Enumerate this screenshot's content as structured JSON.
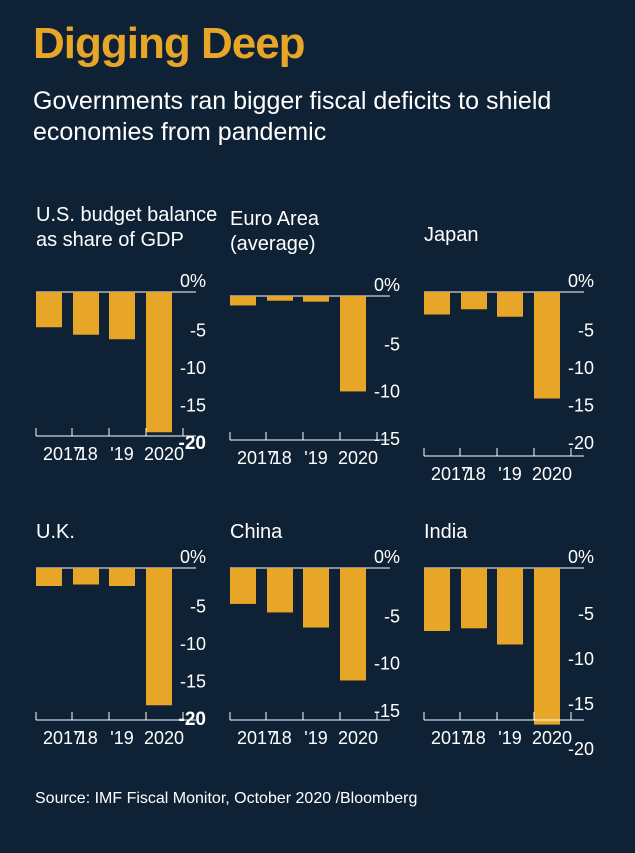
{
  "title": "Digging Deep",
  "subtitle": "Governments ran bigger fiscal deficits to shield economies from pandemic",
  "source": "Source: IMF Fiscal Monitor, October 2020 /Bloomberg",
  "colors": {
    "background": "#0f2235",
    "bar": "#e8a628",
    "text": "#ffffff",
    "title": "#e8a628"
  },
  "chart_data": [
    {
      "type": "bar",
      "title": "U.S. budget balance\nas share of GDP",
      "categories": [
        "2017",
        "'18",
        "'19",
        "2020"
      ],
      "values": [
        -4.7,
        -5.7,
        -6.3,
        -18.7
      ],
      "ylim": [
        -20,
        0
      ],
      "yticks": [
        0,
        -5,
        -10,
        -15,
        -20
      ],
      "ytick_labels": [
        "0%",
        "-5",
        "-10",
        "-15",
        "-20"
      ],
      "bold_tick": "-20"
    },
    {
      "type": "bar",
      "title": "Euro Area\n(average)",
      "categories": [
        "2017",
        "'18",
        "'19",
        "2020"
      ],
      "values": [
        -1.0,
        -0.5,
        -0.6,
        -10.1
      ],
      "ylim": [
        -15,
        0
      ],
      "yticks": [
        0,
        -5,
        -10,
        -15
      ],
      "ytick_labels": [
        "0%",
        "-5",
        "-10",
        "-15"
      ]
    },
    {
      "type": "bar",
      "title": "Japan",
      "categories": [
        "2017",
        "'18",
        "'19",
        "2020"
      ],
      "values": [
        -3.0,
        -2.3,
        -3.3,
        -14.2
      ],
      "ylim": [
        -20,
        0
      ],
      "yticks": [
        0,
        -5,
        -10,
        -15,
        -20
      ],
      "ytick_labels": [
        "0%",
        "-5",
        "-10",
        "-15",
        "-20"
      ]
    },
    {
      "type": "bar",
      "title": "U.K.",
      "categories": [
        "2017",
        "'18",
        "'19",
        "2020"
      ],
      "values": [
        -2.4,
        -2.2,
        -2.4,
        -18.3
      ],
      "ylim": [
        -20,
        0
      ],
      "yticks": [
        0,
        -5,
        -10,
        -15,
        -20
      ],
      "ytick_labels": [
        "0%",
        "-5",
        "-10",
        "-15",
        "-20"
      ],
      "bold_tick": "-20"
    },
    {
      "type": "bar",
      "title": "China",
      "categories": [
        "2017",
        "'18",
        "'19",
        "2020"
      ],
      "values": [
        -3.8,
        -4.7,
        -6.3,
        -11.9
      ],
      "ylim": [
        -15,
        0
      ],
      "yticks": [
        0,
        -5,
        -10,
        -15
      ],
      "ytick_labels": [
        "0%",
        "-5",
        "-10",
        "-15"
      ]
    },
    {
      "type": "bar",
      "title": "India",
      "categories": [
        "2017",
        "'18",
        "'19",
        "2020"
      ],
      "values": [
        -7.0,
        -6.7,
        -8.5,
        -17.4
      ],
      "ylim": [
        -20,
        0
      ],
      "yticks": [
        0,
        -5,
        -10,
        -15,
        -20
      ],
      "ytick_labels": [
        "0%",
        "-5",
        "-10",
        "-15",
        "-20"
      ]
    }
  ]
}
